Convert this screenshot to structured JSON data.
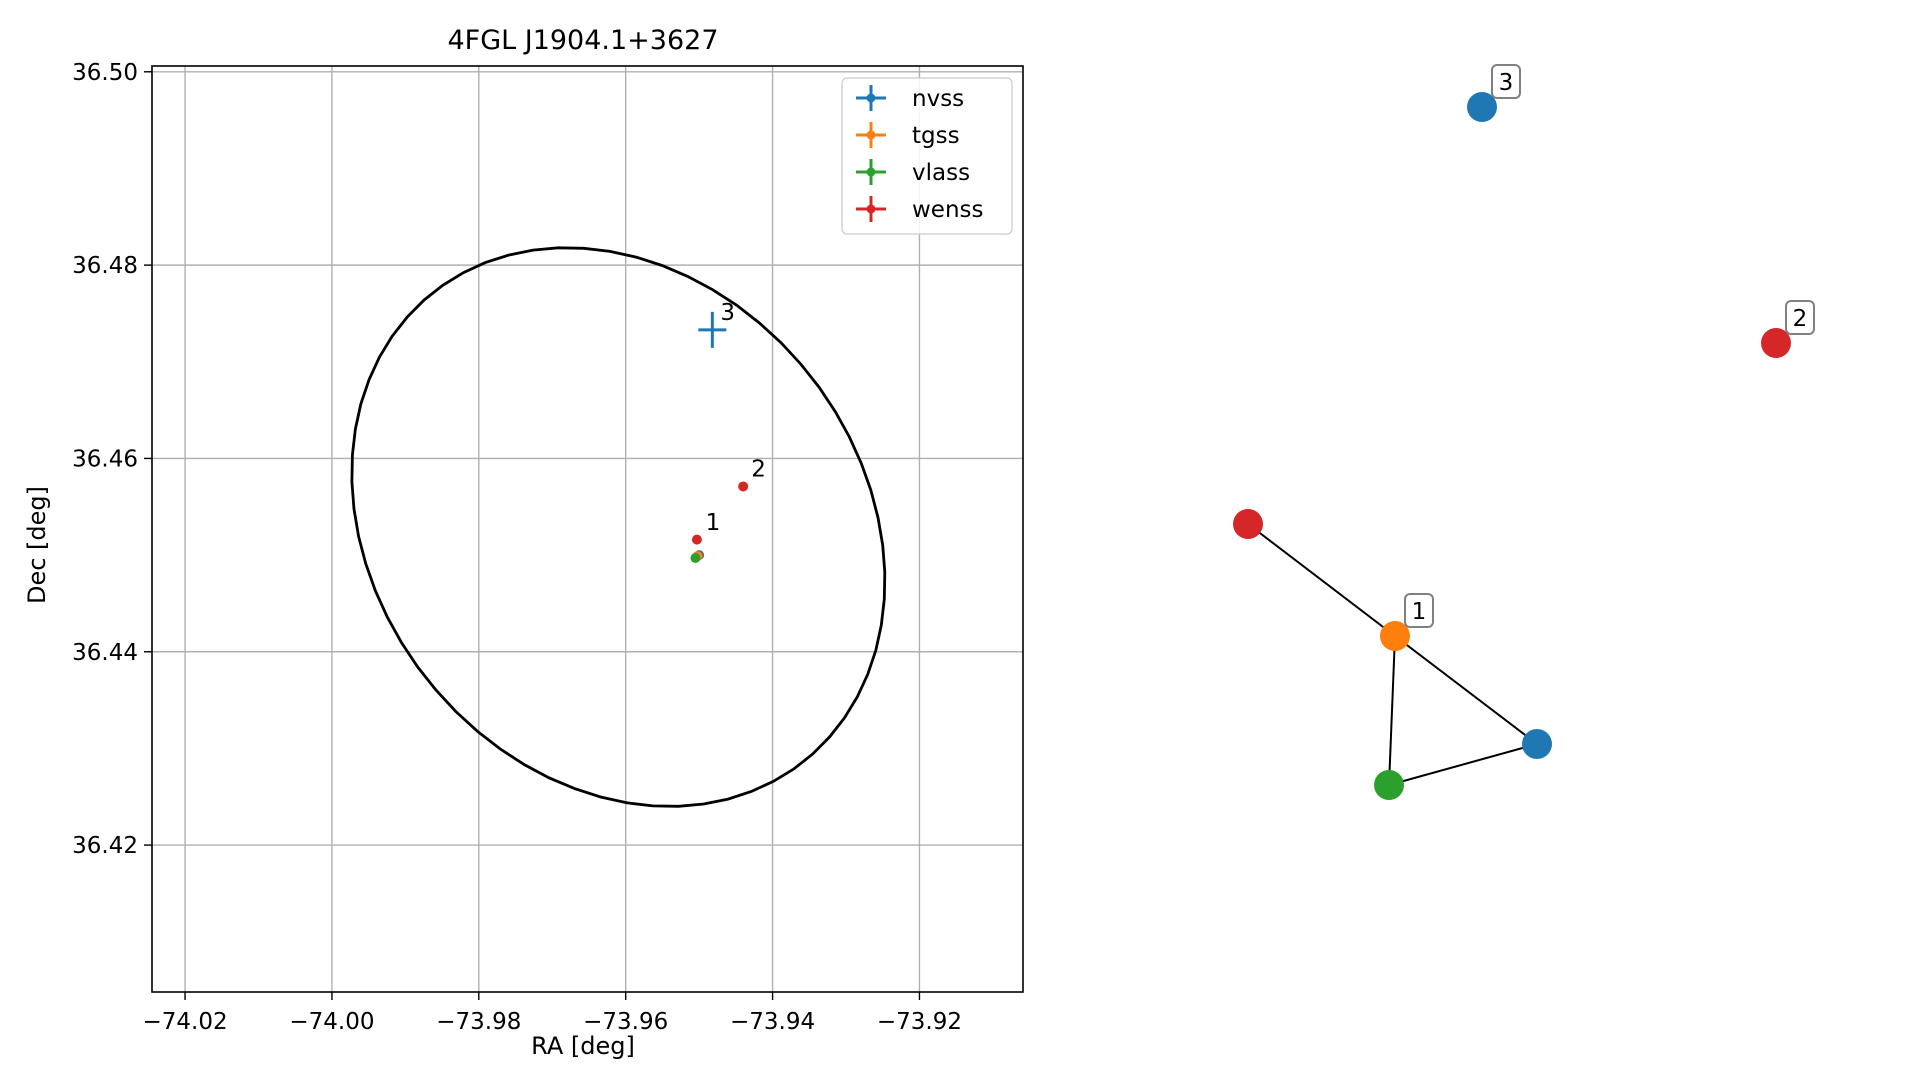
{
  "chart_data": [
    {
      "type": "scatter",
      "title": "4FGL J1904.1+3627",
      "xlabel": "RA [deg]",
      "ylabel": "Dec [deg]",
      "xlim": [
        -74.0245,
        -73.9059
      ],
      "ylim": [
        36.4048,
        36.5006
      ],
      "xticks": [
        -74.02,
        -74.0,
        -73.98,
        -73.96,
        -73.94,
        -73.92
      ],
      "xtick_labels": [
        "−74.02",
        "−74.00",
        "−73.98",
        "−73.96",
        "−73.94",
        "−73.92"
      ],
      "yticks": [
        36.42,
        36.44,
        36.46,
        36.48,
        36.5
      ],
      "ytick_labels": [
        "36.42",
        "36.44",
        "36.46",
        "36.48",
        "36.50"
      ],
      "grid": true,
      "legend_position": "top-right",
      "series": [
        {
          "name": "nvss",
          "color": "#1f77b4",
          "points": [
            {
              "x": -73.95,
              "y": 36.45
            },
            {
              "x": -73.9482,
              "y": 36.4733,
              "cross": true
            }
          ]
        },
        {
          "name": "tgss",
          "color": "#ff7f0e",
          "points": [
            {
              "x": -73.9502,
              "y": 36.4499
            }
          ]
        },
        {
          "name": "vlass",
          "color": "#2ca02c",
          "points": [
            {
              "x": -73.9505,
              "y": 36.4497
            }
          ]
        },
        {
          "name": "wenss",
          "color": "#d62728",
          "points": [
            {
              "x": -73.9503,
              "y": 36.4516
            },
            {
              "x": -73.944,
              "y": 36.4571
            }
          ]
        }
      ],
      "annotations": [
        {
          "text": "1",
          "x": -73.9502,
          "y": 36.452
        },
        {
          "text": "2",
          "x": -73.944,
          "y": 36.4575
        },
        {
          "text": "3",
          "x": -73.9482,
          "y": 36.4737
        }
      ],
      "ellipse": {
        "center": [
          -73.961,
          36.4529
        ],
        "semi_axes": [
          0.0373,
          0.0276
        ],
        "angle_deg": -20,
        "color": "#000000"
      }
    },
    {
      "type": "network",
      "nodes": [
        {
          "id": "wenss-1",
          "color": "#d62728"
        },
        {
          "id": "tgss-1",
          "color": "#ff7f0e",
          "label": "1"
        },
        {
          "id": "nvss-1",
          "color": "#1f77b4"
        },
        {
          "id": "vlass-1",
          "color": "#2ca02c"
        },
        {
          "id": "nvss-3",
          "color": "#1f77b4",
          "label": "3"
        },
        {
          "id": "wenss-2",
          "color": "#d62728",
          "label": "2"
        }
      ],
      "edges": [
        [
          "wenss-1",
          "tgss-1"
        ],
        [
          "tgss-1",
          "nvss-1"
        ],
        [
          "tgss-1",
          "vlass-1"
        ],
        [
          "vlass-1",
          "nvss-1"
        ]
      ]
    }
  ]
}
